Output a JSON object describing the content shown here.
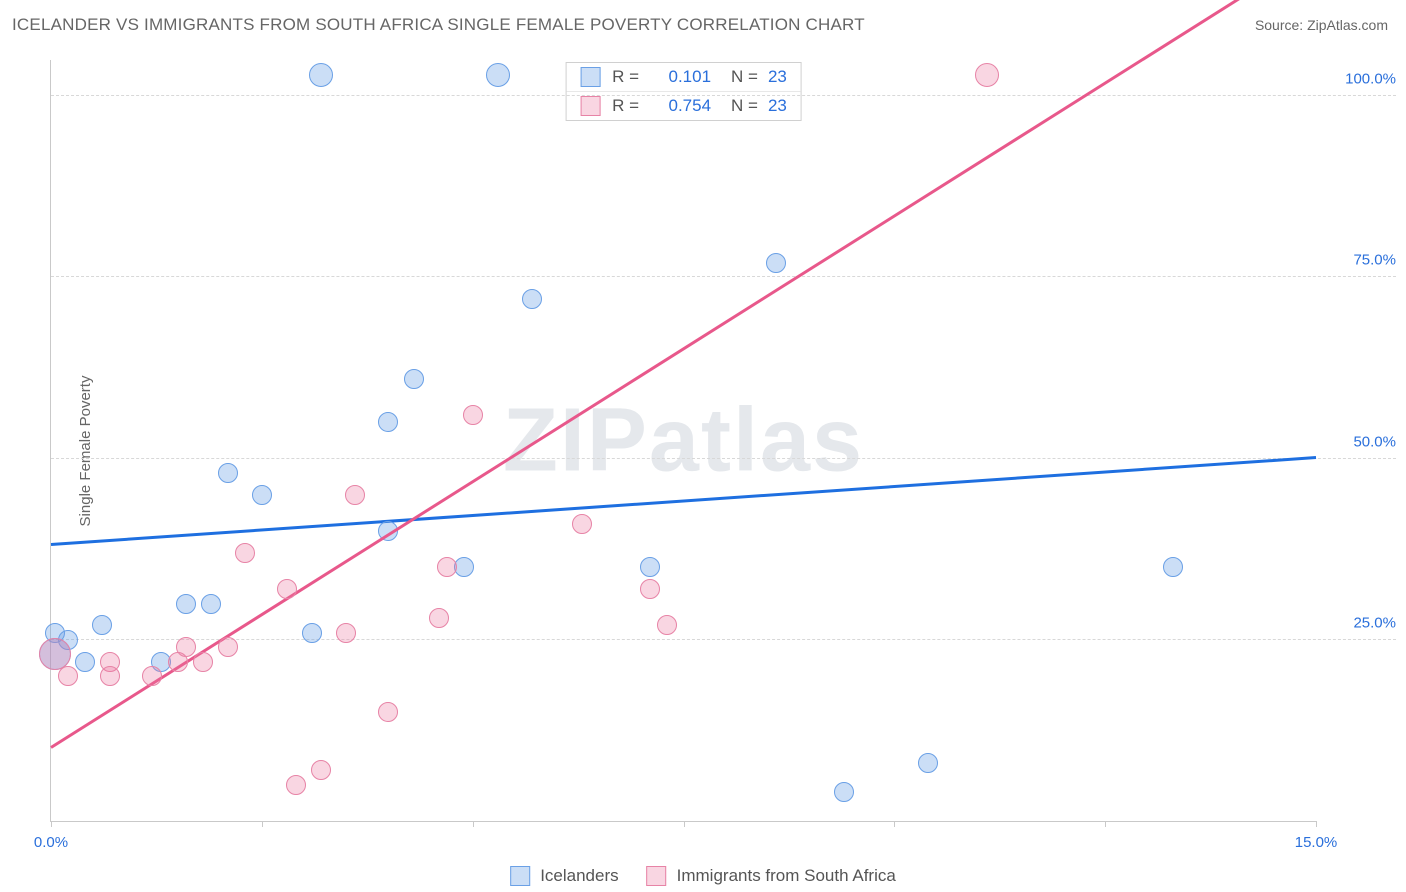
{
  "header": {
    "title": "ICELANDER VS IMMIGRANTS FROM SOUTH AFRICA SINGLE FEMALE POVERTY CORRELATION CHART",
    "source": "Source: ZipAtlas.com"
  },
  "chart": {
    "type": "scatter",
    "ylabel": "Single Female Poverty",
    "watermark": "ZIPatlas",
    "xlim": [
      0,
      15
    ],
    "ylim": [
      0,
      105
    ],
    "background_color": "#ffffff",
    "grid": {
      "color": "#d8d8d8",
      "style": "dashed"
    },
    "axis": {
      "color": "#c9c9c9",
      "tick_color": "#c9c9c9",
      "xlabel_color": "#2a6fdb",
      "ylabel_text_color": "#666666"
    },
    "xticks": [
      0,
      2.5,
      5,
      7.5,
      10,
      12.5,
      15
    ],
    "xtick_labels": {
      "0": "0.0%",
      "15": "15.0%"
    },
    "yticks": [
      25,
      50,
      75,
      100
    ],
    "ytick_labels": {
      "25": "25.0%",
      "50": "50.0%",
      "75": "75.0%",
      "100": "100.0%"
    },
    "ytick_label_color": "#2a6fdb",
    "series": [
      {
        "name": "Icelanders",
        "marker_fill": "rgba(106,160,230,0.35)",
        "marker_stroke": "#6aa0e6",
        "marker_radius": 10,
        "trend": {
          "color": "#1e6fe0",
          "width": 3,
          "y_at_x0": 38,
          "y_at_xmax": 50
        },
        "R": "0.101",
        "N": "23",
        "points": [
          {
            "x": 0.05,
            "y": 23,
            "r": 16
          },
          {
            "x": 0.05,
            "y": 26,
            "r": 10
          },
          {
            "x": 0.2,
            "y": 25,
            "r": 10
          },
          {
            "x": 0.4,
            "y": 22,
            "r": 10
          },
          {
            "x": 0.6,
            "y": 27,
            "r": 10
          },
          {
            "x": 1.3,
            "y": 22,
            "r": 10
          },
          {
            "x": 1.6,
            "y": 30,
            "r": 10
          },
          {
            "x": 1.9,
            "y": 30,
            "r": 10
          },
          {
            "x": 2.1,
            "y": 48,
            "r": 10
          },
          {
            "x": 2.5,
            "y": 45,
            "r": 10
          },
          {
            "x": 3.1,
            "y": 26,
            "r": 10
          },
          {
            "x": 3.2,
            "y": 103,
            "r": 12
          },
          {
            "x": 4.0,
            "y": 55,
            "r": 10
          },
          {
            "x": 4.0,
            "y": 40,
            "r": 10
          },
          {
            "x": 4.3,
            "y": 61,
            "r": 10
          },
          {
            "x": 4.9,
            "y": 35,
            "r": 10
          },
          {
            "x": 5.3,
            "y": 103,
            "r": 12
          },
          {
            "x": 5.7,
            "y": 72,
            "r": 10
          },
          {
            "x": 7.1,
            "y": 35,
            "r": 10
          },
          {
            "x": 8.6,
            "y": 77,
            "r": 10
          },
          {
            "x": 9.4,
            "y": 4,
            "r": 10
          },
          {
            "x": 10.4,
            "y": 8,
            "r": 10
          },
          {
            "x": 13.3,
            "y": 35,
            "r": 10
          }
        ]
      },
      {
        "name": "Immigrants from South Africa",
        "marker_fill": "rgba(236,120,160,0.30)",
        "marker_stroke": "#e783a6",
        "marker_radius": 10,
        "trend": {
          "color": "#e8588b",
          "width": 3,
          "y_at_x0": 10,
          "y_at_xmax": 120
        },
        "R": "0.754",
        "N": "23",
        "points": [
          {
            "x": 0.05,
            "y": 23,
            "r": 16
          },
          {
            "x": 0.2,
            "y": 20,
            "r": 10
          },
          {
            "x": 0.7,
            "y": 22,
            "r": 10
          },
          {
            "x": 0.7,
            "y": 20,
            "r": 10
          },
          {
            "x": 1.2,
            "y": 20,
            "r": 10
          },
          {
            "x": 1.5,
            "y": 22,
            "r": 10
          },
          {
            "x": 1.6,
            "y": 24,
            "r": 10
          },
          {
            "x": 1.8,
            "y": 22,
            "r": 10
          },
          {
            "x": 2.1,
            "y": 24,
            "r": 10
          },
          {
            "x": 2.3,
            "y": 37,
            "r": 10
          },
          {
            "x": 2.8,
            "y": 32,
            "r": 10
          },
          {
            "x": 2.9,
            "y": 5,
            "r": 10
          },
          {
            "x": 3.2,
            "y": 7,
            "r": 10
          },
          {
            "x": 3.5,
            "y": 26,
            "r": 10
          },
          {
            "x": 3.6,
            "y": 45,
            "r": 10
          },
          {
            "x": 4.0,
            "y": 15,
            "r": 10
          },
          {
            "x": 4.6,
            "y": 28,
            "r": 10
          },
          {
            "x": 4.7,
            "y": 35,
            "r": 10
          },
          {
            "x": 5.0,
            "y": 56,
            "r": 10
          },
          {
            "x": 6.3,
            "y": 41,
            "r": 10
          },
          {
            "x": 7.1,
            "y": 32,
            "r": 10
          },
          {
            "x": 7.3,
            "y": 27,
            "r": 10
          },
          {
            "x": 11.1,
            "y": 103,
            "r": 12
          }
        ]
      }
    ],
    "legend_top": {
      "r_label": "R =",
      "n_label": "N ="
    },
    "legend_bottom_labels": [
      "Icelanders",
      "Immigrants from South Africa"
    ]
  }
}
